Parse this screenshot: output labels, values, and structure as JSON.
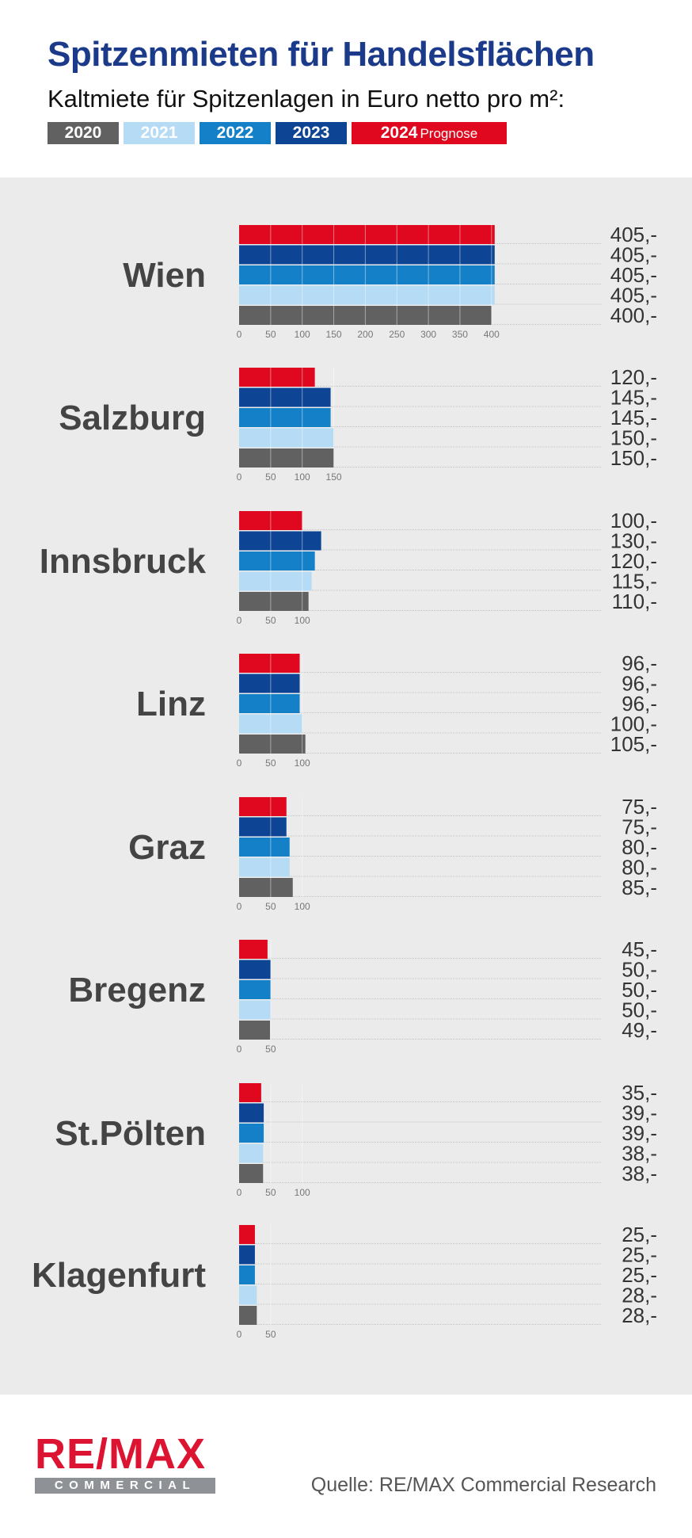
{
  "header": {
    "title": "Spitzenmieten für Handelsflächen",
    "subtitle": "Kaltmiete für Spitzenlagen in Euro netto pro m²:"
  },
  "legend": [
    {
      "label": "2020",
      "sub": "",
      "color": "#616161"
    },
    {
      "label": "2021",
      "sub": "",
      "color": "#b5dbf5"
    },
    {
      "label": "2022",
      "sub": "",
      "color": "#1380c7"
    },
    {
      "label": "2023",
      "sub": "",
      "color": "#0e4494"
    },
    {
      "label": "2024",
      "sub": "Prognose",
      "color": "#e0081f"
    }
  ],
  "chart_data": {
    "type": "bar",
    "orientation": "horizontal",
    "series_order_top_to_bottom": [
      "2024",
      "2023",
      "2022",
      "2021",
      "2020"
    ],
    "value_suffix": ",-",
    "groups": [
      {
        "city": "Wien",
        "values": {
          "2024": 405,
          "2023": 405,
          "2022": 405,
          "2021": 405,
          "2020": 400
        },
        "ticks": [
          0,
          50,
          100,
          150,
          200,
          250,
          300,
          350,
          400
        ]
      },
      {
        "city": "Salzburg",
        "values": {
          "2024": 120,
          "2023": 145,
          "2022": 145,
          "2021": 150,
          "2020": 150
        },
        "ticks": [
          0,
          50,
          100,
          150
        ]
      },
      {
        "city": "Innsbruck",
        "values": {
          "2024": 100,
          "2023": 130,
          "2022": 120,
          "2021": 115,
          "2020": 110
        },
        "ticks": [
          0,
          50,
          100
        ]
      },
      {
        "city": "Linz",
        "values": {
          "2024": 96,
          "2023": 96,
          "2022": 96,
          "2021": 100,
          "2020": 105
        },
        "ticks": [
          0,
          50,
          100
        ]
      },
      {
        "city": "Graz",
        "values": {
          "2024": 75,
          "2023": 75,
          "2022": 80,
          "2021": 80,
          "2020": 85
        },
        "ticks": [
          0,
          50,
          100
        ]
      },
      {
        "city": "Bregenz",
        "values": {
          "2024": 45,
          "2023": 50,
          "2022": 50,
          "2021": 50,
          "2020": 49
        },
        "ticks": [
          0,
          50
        ]
      },
      {
        "city": "St.Pölten",
        "values": {
          "2024": 35,
          "2023": 39,
          "2022": 39,
          "2021": 38,
          "2020": 38
        },
        "ticks": [
          0,
          50,
          100
        ]
      },
      {
        "city": "Klagenfurt",
        "values": {
          "2024": 25,
          "2023": 25,
          "2022": 25,
          "2021": 28,
          "2020": 28
        },
        "ticks": [
          0,
          50
        ]
      }
    ]
  },
  "footer": {
    "logo_main": "RE/MAX",
    "logo_sub": "COMMERCIAL",
    "logo_mark": "®",
    "source": "Quelle: RE/MAX Commercial Research"
  }
}
